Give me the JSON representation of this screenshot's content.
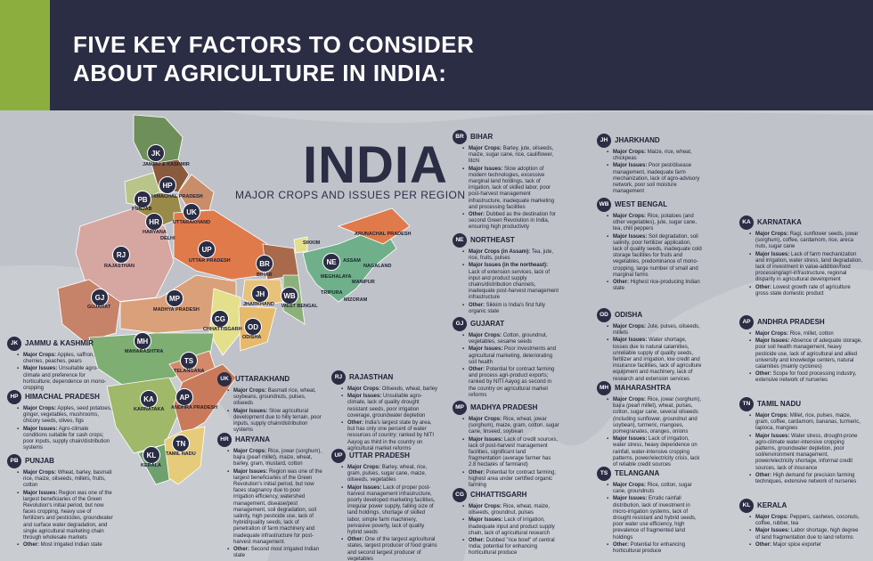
{
  "header": {
    "title_line1": "FIVE KEY FACTORS TO CONSIDER",
    "title_line2": "ABOUT AGRICULTURE IN INDIA:"
  },
  "map": {
    "title": "INDIA",
    "subtitle": "MAJOR CROPS AND ISSUES PER REGION",
    "badges": [
      {
        "code": "JK",
        "name": "JAMMU & KASHMIR",
        "color": "#6f8f5a"
      },
      {
        "code": "HP",
        "name": "HIMACHAL PRADESH",
        "color": "#8a5a3c"
      },
      {
        "code": "PB",
        "name": "PUNJAB",
        "color": "#b8c48a"
      },
      {
        "code": "UK",
        "name": "UTTARAKHAND",
        "color": "#c98d6a"
      },
      {
        "code": "HR",
        "name": "HARYANA",
        "color": "#9a8a4a"
      },
      {
        "code": "RJ",
        "name": "RAJASTHAN",
        "color": "#d6a6a0"
      },
      {
        "code": "UP",
        "name": "UTTAR PRADESH",
        "color": "#e07a4a"
      },
      {
        "code": "BR",
        "name": "BIHAR",
        "color": "#a86a4a"
      },
      {
        "code": "NE",
        "name": "ASSAM",
        "color": "#6fb08a"
      },
      {
        "code": "GJ",
        "name": "GUJARAT",
        "color": "#c6836a"
      },
      {
        "code": "MP",
        "name": "MADHYA PRADESH",
        "color": "#d9a07a"
      },
      {
        "code": "JH",
        "name": "JHARKHAND",
        "color": "#e6c27a"
      },
      {
        "code": "WB",
        "name": "WEST BENGAL",
        "color": "#8bb07a"
      },
      {
        "code": "CG",
        "name": "CHHATTISGARH",
        "color": "#e3df8a"
      },
      {
        "code": "OD",
        "name": "ODISHA",
        "color": "#e7b96a"
      },
      {
        "code": "MH",
        "name": "MAHARASHTRA",
        "color": "#7fae72"
      },
      {
        "code": "TS",
        "name": "TELANGANA",
        "color": "#d48a6a"
      },
      {
        "code": "KA",
        "name": "KARNATAKA",
        "color": "#a0b86a"
      },
      {
        "code": "AP",
        "name": "ANDHRA PRADESH",
        "color": "#c87a5a"
      },
      {
        "code": "TN",
        "name": "TAMIL NADU",
        "color": "#e6cc7a"
      },
      {
        "code": "KL",
        "name": "KERALA",
        "color": "#6fa070"
      }
    ],
    "extra_labels": [
      "SIKKIM",
      "ARUNACHAL PRADESH",
      "NAGALAND",
      "MEGHALAYA",
      "MANIPUR",
      "TRIPURA",
      "MIZORAM",
      "DELHI"
    ]
  },
  "regions": [
    {
      "code": "JK",
      "name": "JAMMU & KASHMIR",
      "items": [
        {
          "k": "Major Crops:",
          "v": "Apples, saffron, cherries, peaches, pears"
        },
        {
          "k": "Major Issues:",
          "v": "Unsuitable agro-climate and preference for horticulture; dependence on mono-cropping"
        }
      ]
    },
    {
      "code": "HP",
      "name": "HIMACHAL PRADESH",
      "items": [
        {
          "k": "Major Crops:",
          "v": "Apples, seed potatoes, ginger, vegetables, mushrooms, chicory seeds, olives, figs"
        },
        {
          "k": "Major Issues:",
          "v": "Agro-climate conditions suitable for cash crops; poor inputs, supply chain/distribution systems"
        }
      ]
    },
    {
      "code": "PB",
      "name": "PUNJAB",
      "items": [
        {
          "k": "Major Crops:",
          "v": "Wheat, barley, basmati rice, maize, oilseeds, millets, fruits, cotton"
        },
        {
          "k": "Major Issues:",
          "v": "Region was one of the largest beneficiaries of the Green Revolution's initial period, but now faces cropping, heavy use of fertilizers and pesticides, groundwater and surface water degradation, and single agricultural marketing chain through wholesale markets"
        },
        {
          "k": "Other:",
          "v": "Most irrigated Indian state"
        }
      ]
    },
    {
      "code": "UK",
      "name": "UTTARAKHAND",
      "items": [
        {
          "k": "Major Crops:",
          "v": "Basmati rice, wheat, soybeans, groundnuts, pulses, oilseeds"
        },
        {
          "k": "Major Issues:",
          "v": "Slow agricultural development due to hilly terrain, poor inputs, supply chain/distribution systems"
        }
      ]
    },
    {
      "code": "HR",
      "name": "HARYANA",
      "items": [
        {
          "k": "Major Crops:",
          "v": "Rice, jowar (sorghum), bajra (pearl millet), maize, wheat, barley, gram, mustard, cotton"
        },
        {
          "k": "Major Issues:",
          "v": "Region was one of the largest beneficiaries of the Green Revolution's initial period, but now faces stagnancy due to poor irrigation efficiency, watershed management, disease/pest management, soil degradation, soil salinity, high pesticide use, lack of hybrid/quality seeds, lack of penetration of farm machinery and inadequate infrastructure for post-harvest management."
        },
        {
          "k": "Other:",
          "v": "Second most irrigated Indian state"
        }
      ]
    },
    {
      "code": "RJ",
      "name": "RAJASTHAN",
      "items": [
        {
          "k": "Major Crops:",
          "v": "Oilseeds, wheat, barley"
        },
        {
          "k": "Major Issues:",
          "v": "Unsuitable agro-climate, lack of quality drought resistant seeds, poor irrigation coverage, groundwater depletion"
        },
        {
          "k": "Other:",
          "v": "India's largest state by area, but has only one percent of water resources of country; ranked by NITI Aayog as third in the country on agricultural market reforms"
        }
      ]
    },
    {
      "code": "UP",
      "name": "UTTAR PRADESH",
      "items": [
        {
          "k": "Major Crops:",
          "v": "Barley, wheat, rice, gram, pulses, sugar cane, maize, oilseeds, vegetables"
        },
        {
          "k": "Major Issues:",
          "v": "Lack of proper post-harvest management infrastructure, poorly developed marketing facilities, irregular power supply, falling size of land holdings, shortage of skilled labor, simple farm machinery, pervasive poverty, lack of quality hybrid seeds"
        },
        {
          "k": "Other:",
          "v": "One of the largest agricultural states, largest producer of food grains and second largest producer of vegetables"
        }
      ]
    },
    {
      "code": "BR",
      "name": "BIHAR",
      "items": [
        {
          "k": "Major Crops:",
          "v": "Barley, jute, oilseeds, maize, sugar cane, rice, cauliflower, litchi"
        },
        {
          "k": "Major Issues:",
          "v": "Slow adoption of modern technologies, excessive marginal land holdings, lack of irrigation, lack of skilled labor, poor post-harvest management infrastructure, inadequate marketing and processing facilities"
        },
        {
          "k": "Other:",
          "v": "Dubbed as the destination for second Green Revolution in India, ensuring high productivity"
        }
      ]
    },
    {
      "code": "NE",
      "name": "NORTHEAST",
      "items": [
        {
          "k": "Major Crops (in Assam):",
          "v": "Tea, jute, rice, fruits, pulses"
        },
        {
          "k": "Major Issues (in the northeast):",
          "v": "Lack of extension services, lack of input and product supply chains/distribution channels, inadequate post-harvest management infrastructure"
        },
        {
          "k": "Other:",
          "v": "Sikkim is India's first fully organic state"
        }
      ]
    },
    {
      "code": "GJ",
      "name": "GUJARAT",
      "items": [
        {
          "k": "Major Crops:",
          "v": "Cotton, groundnut, vegetables, sesame seeds"
        },
        {
          "k": "Major Issues:",
          "v": "Poor investments and agricultural marketing, deteriorating soil health"
        },
        {
          "k": "Other:",
          "v": "Potential for contract farming and process agri-product exports; ranked by NITI Aayog as second in the country on agricultural market reforms"
        }
      ]
    },
    {
      "code": "MP",
      "name": "MADHYA PRADESH",
      "items": [
        {
          "k": "Major Crops:",
          "v": "Rice, wheat, jowar (sorghum), maize, gram, cotton, sugar cane, linseed, soybean"
        },
        {
          "k": "Major Issues:",
          "v": "Lack of credit sources, lack of post-harvest management facilities, significant land fragmentation (average farmer has 2.8 hectares of farmland)"
        },
        {
          "k": "Other:",
          "v": "Potential for contract farming; highest area under certified organic farming"
        }
      ]
    },
    {
      "code": "CG",
      "name": "CHHATTISGARH",
      "items": [
        {
          "k": "Major Crops:",
          "v": "Rice, wheat, maize, oilseeds, groundnut, pulses"
        },
        {
          "k": "Major Issues:",
          "v": "Lack of irrigation, inadequate input and product supply chain, lack of agricultural research"
        },
        {
          "k": "Other:",
          "v": "Dubbed \"rice bowl\" of central India; potential for enhancing horticultural produce"
        }
      ]
    },
    {
      "code": "JH",
      "name": "JHARKHAND",
      "items": [
        {
          "k": "Major Crops:",
          "v": "Maize, rice, wheat, chickpeas"
        },
        {
          "k": "Major Issues:",
          "v": "Poor pest/disease management, inadequate farm mechanization, lack of agro-advisory network, poor soil moisture management"
        }
      ]
    },
    {
      "code": "WB",
      "name": "WEST BENGAL",
      "items": [
        {
          "k": "Major Crops:",
          "v": "Rice, potatoes (and other vegetables), jute, sugar cane, tea, chili peppers"
        },
        {
          "k": "Major Issues:",
          "v": "Soil degradation, soil salinity, poor fertilizer application, lack of quality seeds, inadequate cold storage facilities for fruits and vegetables, predominance of mono-cropping, large number of small and marginal farms"
        },
        {
          "k": "Other:",
          "v": "Highest rice-producing Indian state"
        }
      ]
    },
    {
      "code": "OD",
      "name": "ODISHA",
      "items": [
        {
          "k": "Major Crops:",
          "v": "Jute, pulses, oilseeds, millets"
        },
        {
          "k": "Major Issues:",
          "v": "Water shortage, losses due to natural calamities, unreliable supply of quality seeds, fertilizer and irrigation, low credit and insurance facilities, lack of agriculture equipment and machinery, lack of research and extension services"
        }
      ]
    },
    {
      "code": "MH",
      "name": "MAHARASHTRA",
      "items": [
        {
          "k": "Major Crops:",
          "v": "Rice, jowar (sorghum), bajra (pearl millet), wheat, pulses, cotton, sugar cane, several oilseeds (including sunflower, groundnut and soybean), turmeric, mangoes, pomegranates, oranges, onions"
        },
        {
          "k": "Major Issues:",
          "v": "Lack of irrigation, water stress, heavy dependence on rainfall, water-intensive cropping patterns, power/electricity crisis, lack of reliable credit sources"
        }
      ]
    },
    {
      "code": "TS",
      "name": "TELANGANA",
      "items": [
        {
          "k": "Major Crops:",
          "v": "Rice, cotton, sugar cane, groundnuts"
        },
        {
          "k": "Major Issues:",
          "v": "Erratic rainfall distribution, lack of investment in micro-irrigation systems, lack of drought resistant and hybrid seeds, poor water use efficiency, high prevalence of fragmented land holdings"
        },
        {
          "k": "Other:",
          "v": "Potential for enhancing horticultural produce"
        }
      ]
    },
    {
      "code": "KA",
      "name": "KARNATAKA",
      "items": [
        {
          "k": "Major Crops:",
          "v": "Ragi, sunflower seeds, jowar (sorghum), coffee, cardamom, rice, areca nuts, sugar cane"
        },
        {
          "k": "Major Issues:",
          "v": "Lack of farm mechanization and irrigation, water stress, land degradation, lack of investment in value-addition/food processing/agri-infrastructure, regional disparity in agricultural development"
        },
        {
          "k": "Other:",
          "v": "Lowest growth rate of agriculture gross state domestic product"
        }
      ]
    },
    {
      "code": "AP",
      "name": "ANDHRA PRADESH",
      "items": [
        {
          "k": "Major Crops:",
          "v": "Rice, millet, cotton"
        },
        {
          "k": "Major Issues:",
          "v": "Absence of adequate storage, poor soil health management, heavy pesticide use, lack of agricultural and allied university and knowledge centers, natural calamities (mainly cyclones)"
        },
        {
          "k": "Other:",
          "v": "Scope for food processing industry, extensive network of nurseries"
        }
      ]
    },
    {
      "code": "TN",
      "name": "TAMIL NADU",
      "items": [
        {
          "k": "Major Crops:",
          "v": "Millet, rice, pulses, maize, gram, coffee, cardamom, bananas, turmeric, tapioca, mangoes"
        },
        {
          "k": "Major Issues:",
          "v": "Water stress, drought-prone agro-climate water-intensive cropping patterns, groundwater depletion, poor soil/environment management, power/electricity shortage, informal credit sources, lack of insurance"
        },
        {
          "k": "Other:",
          "v": "High demand for precision farming techniques, extensive network of nurseries"
        }
      ]
    },
    {
      "code": "KL",
      "name": "KERALA",
      "items": [
        {
          "k": "Major Crops:",
          "v": "Peppers, cashews, coconuts, coffee, rubber, tea"
        },
        {
          "k": "Major Issues:",
          "v": "Labor shortage, high degree of land fragmentation due to land reforms"
        },
        {
          "k": "Other:",
          "v": "Major spice exporter"
        }
      ]
    }
  ]
}
